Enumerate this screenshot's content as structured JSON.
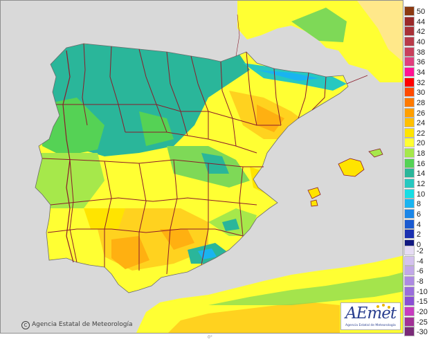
{
  "map": {
    "copyright": "Agencia Estatal de Meteorología",
    "copyright_symbol": "C",
    "logo_text": "AEmet",
    "logo_subtitle": "Agencia Estatal de Meteorología",
    "bottom_label": "0°",
    "colors": {
      "sea": "#d9d9d9",
      "border": "#8b1a2a",
      "cool": "#2ab69a",
      "mild": "#7ed957",
      "warm": "#ffff33",
      "hot": "#ffd21f",
      "hotter": "#ffb011"
    }
  },
  "legend": {
    "positive": [
      {
        "label": "50",
        "color": "#8b3a12"
      },
      {
        "label": "44",
        "color": "#9a2a2a"
      },
      {
        "label": "42",
        "color": "#a83238"
      },
      {
        "label": "40",
        "color": "#b83c4a"
      },
      {
        "label": "38",
        "color": "#c8405c"
      },
      {
        "label": "36",
        "color": "#e0407e"
      },
      {
        "label": "34",
        "color": "#ff1493"
      },
      {
        "label": "32",
        "color": "#ff0000"
      },
      {
        "label": "30",
        "color": "#ff4a00"
      },
      {
        "label": "28",
        "color": "#ff7a00"
      },
      {
        "label": "26",
        "color": "#ff9f00"
      },
      {
        "label": "24",
        "color": "#ffc000"
      },
      {
        "label": "22",
        "color": "#ffe400"
      },
      {
        "label": "20",
        "color": "#ffff33"
      },
      {
        "label": "18",
        "color": "#a6e84b"
      },
      {
        "label": "16",
        "color": "#55d255"
      },
      {
        "label": "14",
        "color": "#2ab69a"
      },
      {
        "label": "12",
        "color": "#27c8c0"
      },
      {
        "label": "10",
        "color": "#18dde4"
      },
      {
        "label": "8",
        "color": "#1ab4f0"
      },
      {
        "label": "6",
        "color": "#1a86e8"
      },
      {
        "label": "4",
        "color": "#1a5ad0"
      },
      {
        "label": "2",
        "color": "#1a30b0"
      },
      {
        "label": "0",
        "color": "#101880"
      }
    ],
    "negative": [
      {
        "label": "-2",
        "color": "#e6dcf4"
      },
      {
        "label": "-4",
        "color": "#d4c2ee"
      },
      {
        "label": "-6",
        "color": "#c2a8e8"
      },
      {
        "label": "-8",
        "color": "#ad8ae2"
      },
      {
        "label": "-10",
        "color": "#9a6ddc"
      },
      {
        "label": "-15",
        "color": "#8a4fd4"
      },
      {
        "label": "-20",
        "color": "#c83cc0"
      },
      {
        "label": "-25",
        "color": "#a23096"
      },
      {
        "label": "-30",
        "color": "#7a2a78"
      }
    ]
  }
}
